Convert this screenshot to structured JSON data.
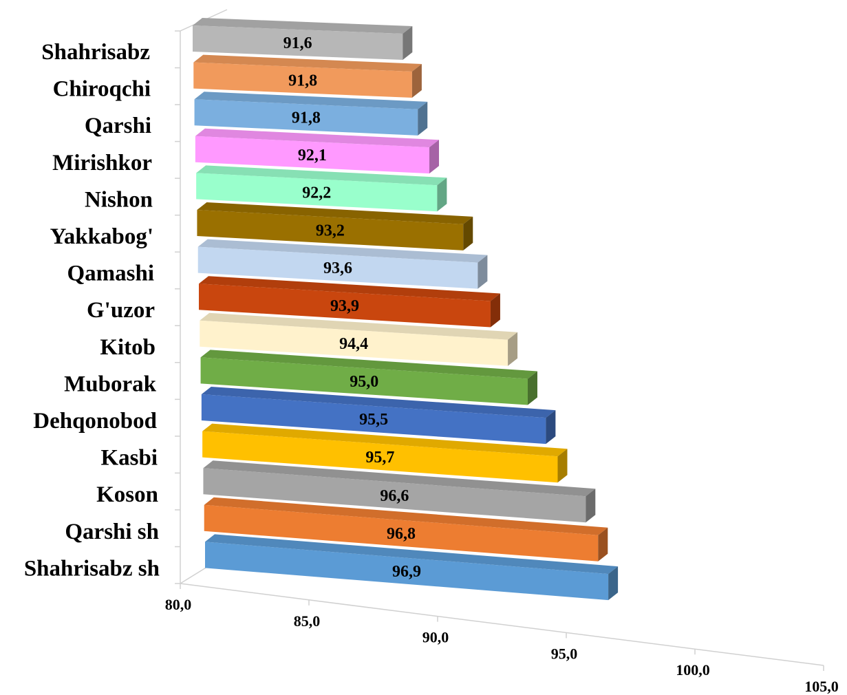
{
  "chart_data": {
    "type": "bar",
    "orientation": "horizontal",
    "style": "3d",
    "title": "",
    "xlabel": "",
    "ylabel": "",
    "xlim": [
      80,
      105
    ],
    "x_ticks": [
      "80,0",
      "85,0",
      "90,0",
      "95,0",
      "100,0",
      "105,0"
    ],
    "grid": false,
    "legend": "none",
    "categories": [
      "Shahrisabz",
      "Chiroqchi",
      "Qarshi",
      "Mirishkor",
      "Nishon",
      "Yakkabog'",
      "Qamashi",
      "G'uzor",
      "Kitob",
      "Muborak",
      "Dehqonobod",
      "Kasbi",
      "Koson",
      "Qarshi sh",
      "Shahrisabz sh"
    ],
    "values": [
      91.6,
      91.8,
      91.8,
      92.1,
      92.2,
      93.2,
      93.6,
      93.9,
      94.4,
      95.0,
      95.5,
      95.7,
      96.6,
      96.8,
      96.9
    ],
    "value_labels": [
      "91,6",
      "91,8",
      "91,8",
      "92,1",
      "92,2",
      "93,2",
      "93,6",
      "93,9",
      "94,4",
      "95,0",
      "95,5",
      "95,7",
      "96,6",
      "96,8",
      "96,9"
    ],
    "colors": [
      "#b7b7b7",
      "#f19a5c",
      "#7bafdf",
      "#ff99ff",
      "#99ffcc",
      "#9a7000",
      "#c2d7f0",
      "#c9460e",
      "#fff2cc",
      "#70ad47",
      "#4472c4",
      "#ffc000",
      "#a5a5a5",
      "#ed7d31",
      "#5b9bd5"
    ]
  }
}
